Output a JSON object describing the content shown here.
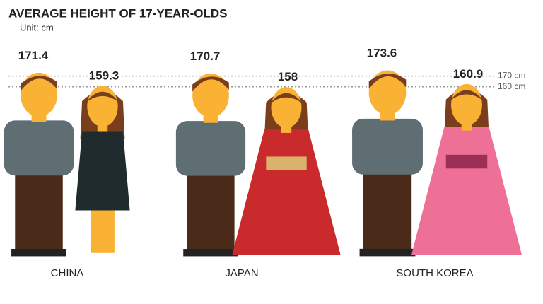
{
  "chart_data": {
    "type": "pictograph",
    "title": "AVERAGE HEIGHT OF 17-YEAR-OLDS",
    "subtitle": "Unit: cm",
    "categories": [
      "CHINA",
      "JAPAN",
      "SOUTH KOREA"
    ],
    "series": [
      {
        "color": "#5e6e73",
        "values": [
          171.4,
          170.7,
          173.6
        ]
      },
      {
        "colors": [
          "#1f2b2d",
          "#c92a2c",
          "#ef7096"
        ],
        "values": [
          159.3,
          158,
          160.9
        ]
      }
    ],
    "ylim": [
      0,
      175
    ],
    "yticks": [
      {
        "value": 170,
        "label": "170 cm"
      },
      {
        "value": 160,
        "label": "160 cm"
      }
    ]
  }
}
